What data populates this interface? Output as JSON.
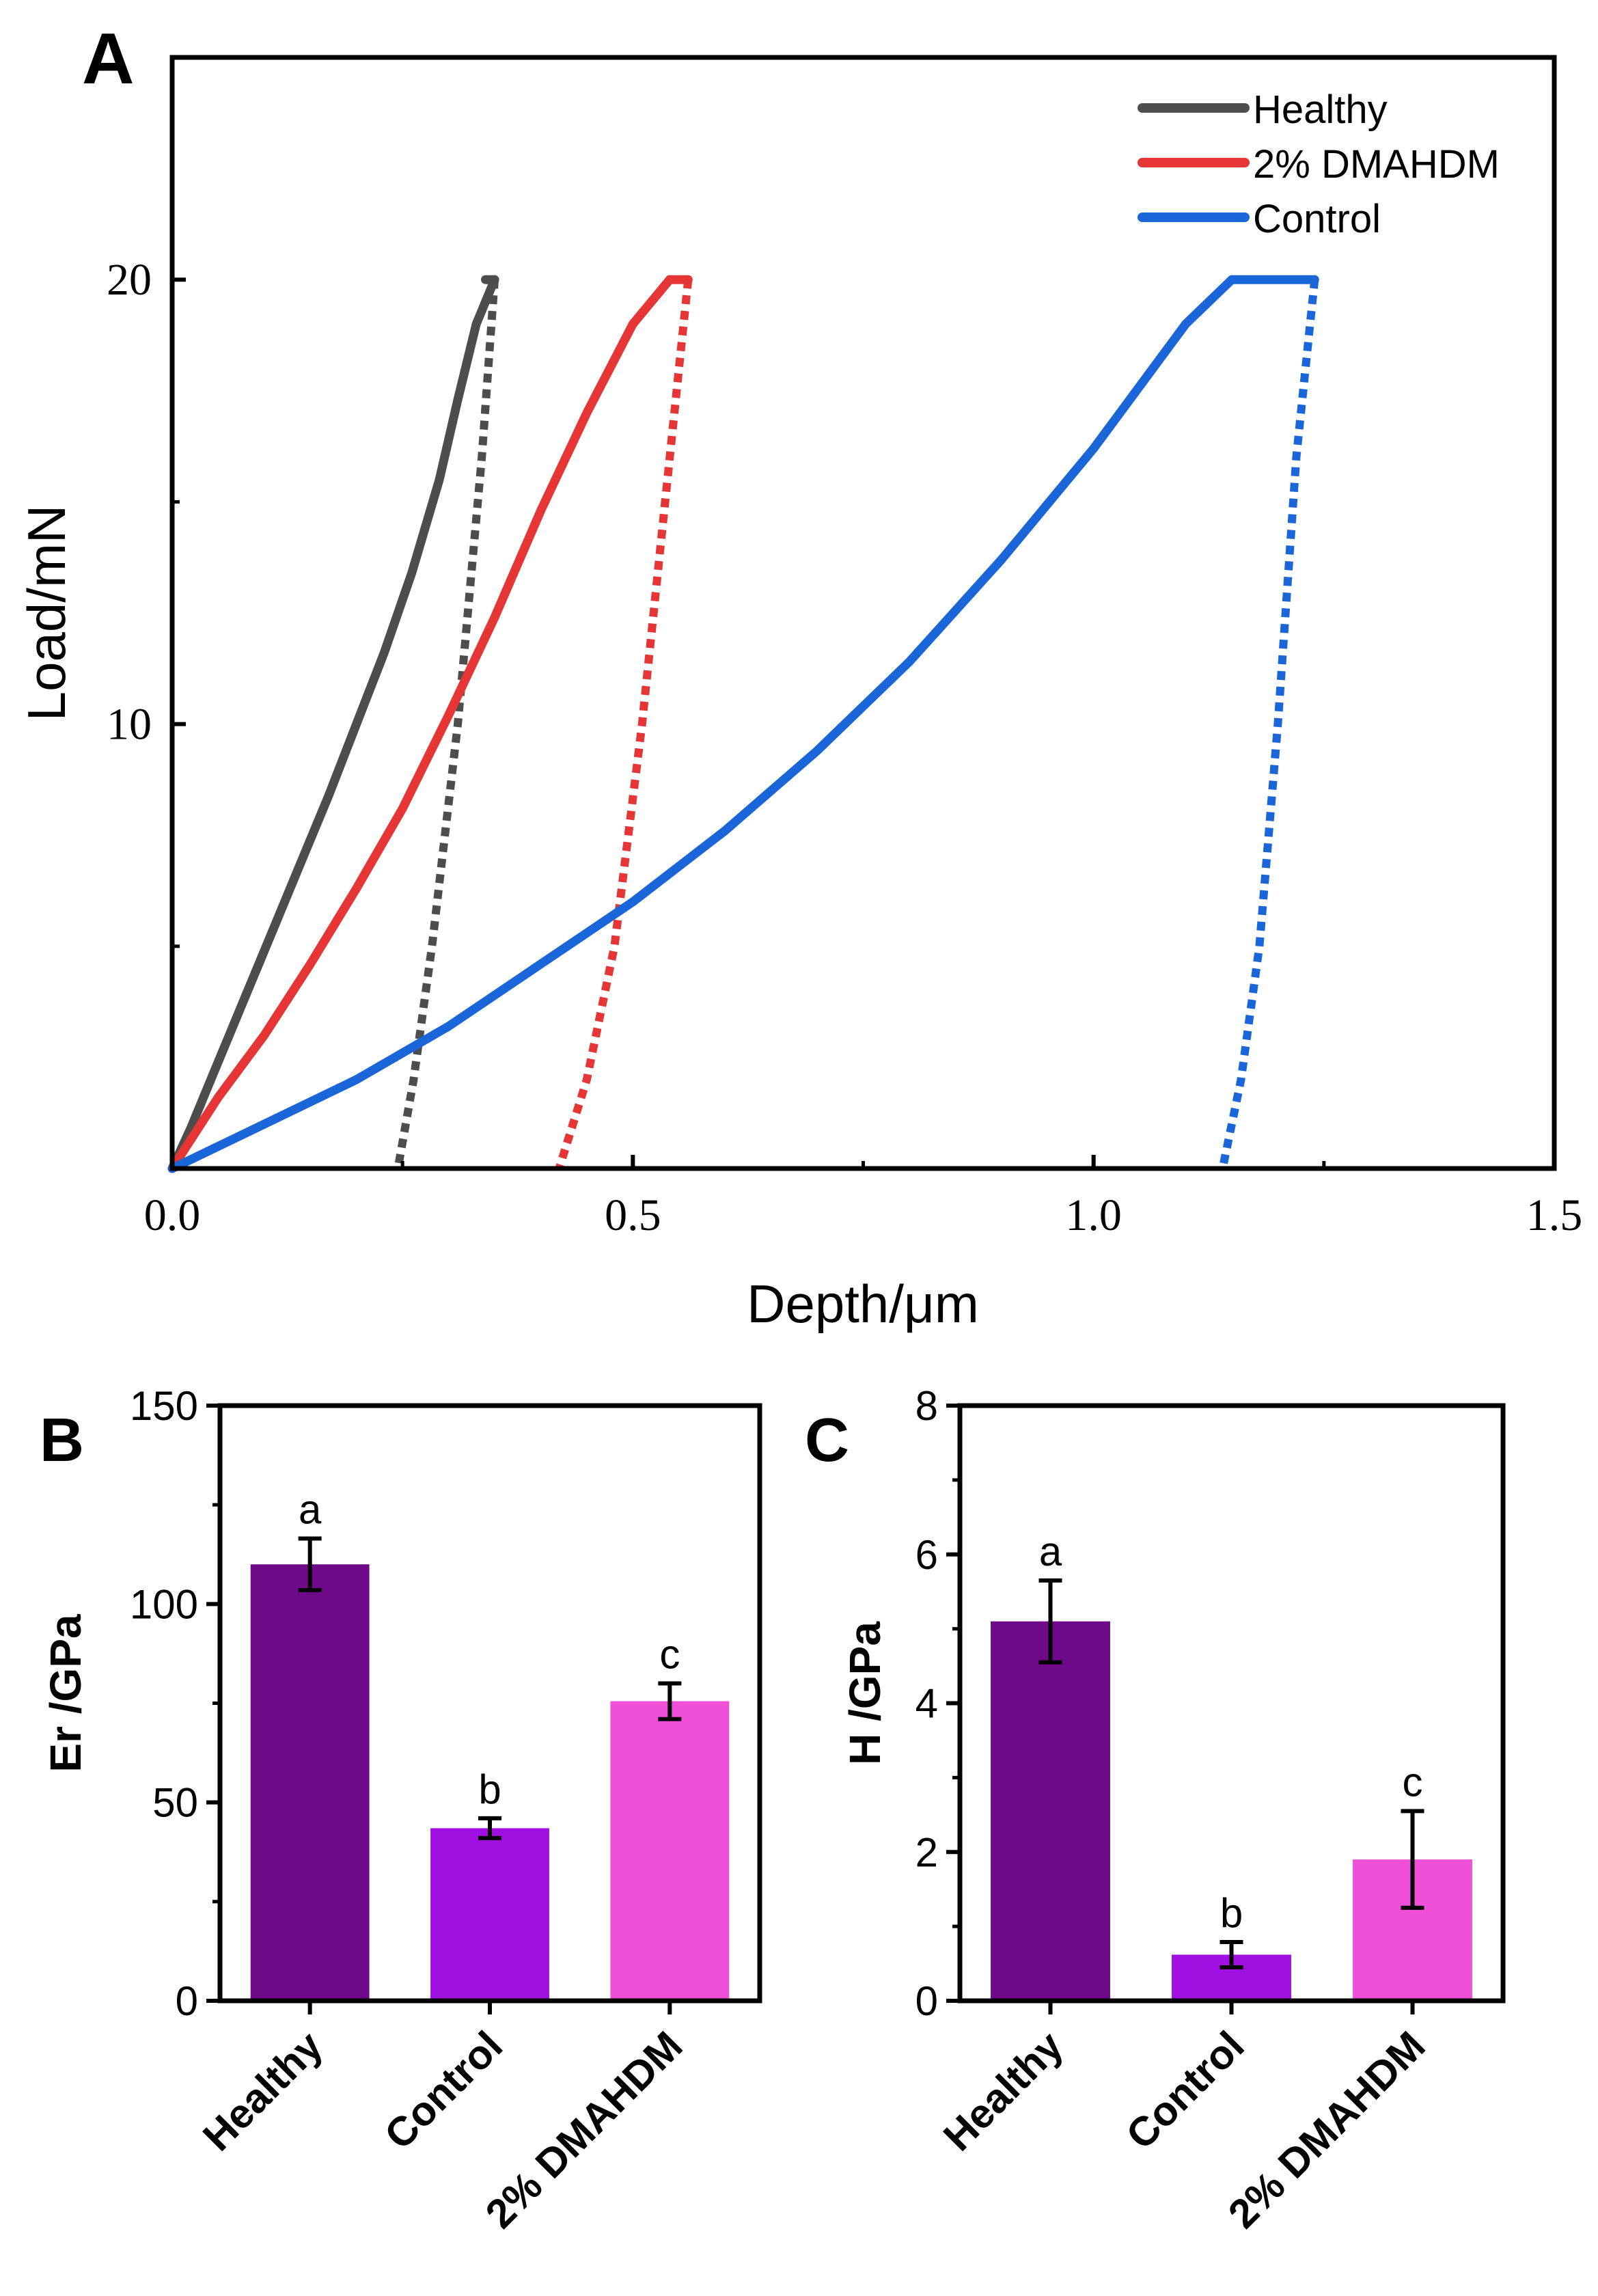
{
  "figure": {
    "panel_labels": [
      "A",
      "B",
      "C"
    ]
  },
  "chart_data": [
    {
      "panel": "A",
      "type": "line",
      "title": "",
      "xlabel": "Depth/μm",
      "ylabel": "Load/mN",
      "xlim": [
        0,
        1.5
      ],
      "ylim": [
        0,
        25
      ],
      "x_ticks": [
        0.0,
        0.5,
        1.0,
        1.5
      ],
      "x_tick_labels": [
        "0.0",
        "0.5",
        "1.0",
        "1.5"
      ],
      "y_ticks": [
        10,
        20
      ],
      "y_tick_labels": [
        "10",
        "20"
      ],
      "legend_position": "top-right",
      "series": [
        {
          "name": "Healthy",
          "color": "#4d4d4d",
          "loading": {
            "x": [
              0.0,
              0.02,
              0.05,
              0.08,
              0.11,
              0.14,
              0.17,
              0.2,
              0.23,
              0.26,
              0.29,
              0.31,
              0.33,
              0.35
            ],
            "y": [
              0.0,
              0.9,
              2.4,
              3.9,
              5.4,
              6.9,
              8.4,
              10.0,
              11.6,
              13.4,
              15.5,
              17.3,
              19.0,
              20.0
            ]
          },
          "hold": {
            "x": [
              0.34,
              0.35
            ],
            "y": [
              20.0,
              20.0
            ]
          },
          "unloading": {
            "x": [
              0.35,
              0.336,
              0.31,
              0.282,
              0.262,
              0.245
            ],
            "y": [
              20.0,
              16.0,
              10.0,
              5.0,
              2.0,
              0.0
            ]
          }
        },
        {
          "name": "2% DMAHDM",
          "color": "#e53535",
          "loading": {
            "x": [
              0.0,
              0.05,
              0.1,
              0.15,
              0.2,
              0.25,
              0.3,
              0.35,
              0.4,
              0.45,
              0.5,
              0.54
            ],
            "y": [
              0.0,
              1.6,
              3.0,
              4.6,
              6.3,
              8.1,
              10.2,
              12.4,
              14.8,
              17.0,
              19.0,
              20.0
            ]
          },
          "hold": {
            "x": [
              0.54,
              0.56
            ],
            "y": [
              20.0,
              20.0
            ]
          },
          "unloading": {
            "x": [
              0.56,
              0.54,
              0.51,
              0.48,
              0.45,
              0.42
            ],
            "y": [
              20.0,
              16.0,
              10.0,
              5.0,
              2.0,
              0.0
            ]
          }
        },
        {
          "name": "Control",
          "color": "#1a66d9",
          "loading": {
            "x": [
              0.0,
              0.1,
              0.2,
              0.3,
              0.4,
              0.5,
              0.6,
              0.7,
              0.8,
              0.9,
              1.0,
              1.1,
              1.15
            ],
            "y": [
              0.0,
              1.0,
              2.0,
              3.2,
              4.6,
              6.0,
              7.6,
              9.4,
              11.4,
              13.7,
              16.2,
              19.0,
              20.0
            ]
          },
          "hold": {
            "x": [
              1.15,
              1.24
            ],
            "y": [
              20.0,
              20.0
            ]
          },
          "unloading": {
            "x": [
              1.24,
              1.22,
              1.2,
              1.18,
              1.16,
              1.14
            ],
            "y": [
              20.0,
              16.0,
              10.0,
              5.0,
              2.0,
              0.0
            ]
          }
        }
      ]
    },
    {
      "panel": "B",
      "type": "bar",
      "title": "",
      "xlabel": "",
      "ylabel": "Er /GPa",
      "ylim": [
        0,
        150
      ],
      "y_ticks": [
        0,
        50,
        100,
        150
      ],
      "y_tick_labels": [
        "0",
        "50",
        "100",
        "150"
      ],
      "categories": [
        "Healthy",
        "Control",
        "2% DMAHDM"
      ],
      "values": [
        110,
        43.5,
        75.5
      ],
      "errors": [
        6.5,
        2.5,
        4.5
      ],
      "significance_letters": [
        "a",
        "b",
        "c"
      ],
      "colors": [
        "#6e0a8a",
        "#a010e0",
        "#f050d8"
      ]
    },
    {
      "panel": "C",
      "type": "bar",
      "title": "",
      "xlabel": "",
      "ylabel": "H /GPa",
      "ylim": [
        0,
        8
      ],
      "y_ticks": [
        0,
        2,
        4,
        6,
        8
      ],
      "y_tick_labels": [
        "0",
        "2",
        "4",
        "6",
        "8"
      ],
      "categories": [
        "Healthy",
        "Control",
        "2% DMAHDM"
      ],
      "values": [
        5.1,
        0.62,
        1.9
      ],
      "errors": [
        0.55,
        0.17,
        0.65
      ],
      "significance_letters": [
        "a",
        "b",
        "c"
      ],
      "colors": [
        "#6e0a8a",
        "#a010e0",
        "#f050d8"
      ]
    }
  ]
}
